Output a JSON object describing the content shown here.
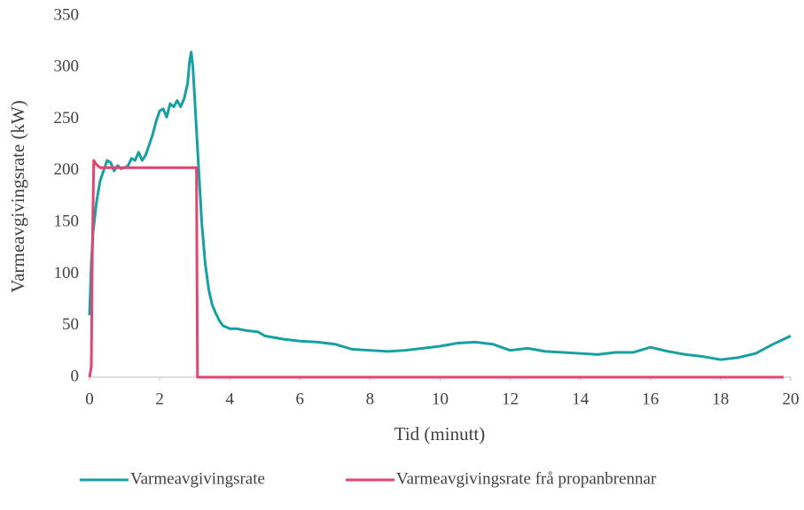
{
  "chart_data": {
    "type": "line",
    "xlabel": "Tid (minutt)",
    "ylabel": "Varmeavgivingsrate (kW)",
    "xlim": [
      0,
      20
    ],
    "xticks": [
      0,
      2,
      4,
      6,
      8,
      10,
      12,
      14,
      16,
      18,
      20
    ],
    "ylim": [
      0,
      350
    ],
    "yticks": [
      0,
      50,
      100,
      150,
      200,
      250,
      300,
      350
    ],
    "grid": false,
    "legend": "bottom",
    "series": [
      {
        "name": "Varmeavgivingsrate",
        "color": "#17a0a3",
        "x": [
          0,
          0.05,
          0.1,
          0.2,
          0.3,
          0.4,
          0.5,
          0.6,
          0.7,
          0.8,
          0.9,
          1.0,
          1.1,
          1.2,
          1.3,
          1.4,
          1.5,
          1.6,
          1.7,
          1.8,
          1.9,
          2.0,
          2.1,
          2.2,
          2.3,
          2.4,
          2.5,
          2.6,
          2.7,
          2.8,
          2.85,
          2.9,
          2.95,
          3.0,
          3.1,
          3.2,
          3.3,
          3.4,
          3.5,
          3.6,
          3.7,
          3.8,
          4.0,
          4.2,
          4.5,
          4.8,
          5.0,
          5.5,
          6.0,
          6.5,
          7.0,
          7.5,
          8.0,
          8.5,
          9.0,
          9.5,
          10.0,
          10.5,
          11.0,
          11.5,
          12.0,
          12.5,
          13.0,
          13.5,
          14.0,
          14.5,
          15.0,
          15.5,
          16.0,
          16.5,
          17.0,
          17.5,
          18.0,
          18.5,
          19.0,
          19.5,
          20.0
        ],
        "values": [
          60,
          110,
          140,
          170,
          190,
          200,
          210,
          208,
          200,
          205,
          202,
          203,
          205,
          212,
          210,
          218,
          210,
          215,
          225,
          235,
          248,
          258,
          260,
          252,
          265,
          262,
          268,
          262,
          270,
          285,
          305,
          315,
          300,
          270,
          210,
          150,
          110,
          85,
          70,
          62,
          55,
          50,
          47,
          47,
          45,
          44,
          40,
          37,
          35,
          34,
          32,
          27,
          26,
          25,
          26,
          28,
          30,
          33,
          34,
          32,
          26,
          28,
          25,
          24,
          23,
          22,
          24,
          24,
          29,
          25,
          22,
          20,
          17,
          19,
          23,
          32,
          40
        ]
      },
      {
        "name": "Varmeavgivingsrate frå propanbrennar",
        "color": "#e2456d",
        "x": [
          0,
          0.05,
          0.08,
          0.12,
          0.2,
          0.3,
          3.05,
          3.08,
          19.8
        ],
        "values": [
          0,
          10,
          120,
          210,
          206,
          203,
          203,
          0,
          0
        ]
      }
    ]
  }
}
